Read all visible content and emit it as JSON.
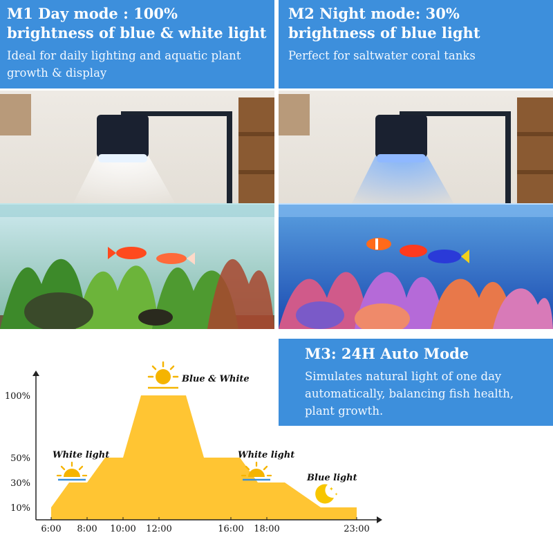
{
  "modes": {
    "m1": {
      "title": "M1 Day mode : 100% brightness of blue & white light",
      "description": "Ideal for daily lighting and aquatic plant growth & display"
    },
    "m2": {
      "title": "M2 Night mode: 30% brightness of blue light",
      "description": "Perfect for saltwater coral tanks"
    },
    "m3": {
      "title": "M3: 24H Auto Mode",
      "description": "Simulates natural light of one day automatically, balancing fish health, plant growth."
    }
  },
  "colors": {
    "panel_blue": "#3d8fdc",
    "curve_yellow": "#ffc533",
    "sun_orange": "#f5b400",
    "moon_yellow": "#f7c600"
  },
  "chart_data": {
    "type": "area",
    "x": [
      "6:00",
      "8:00",
      "10:00",
      "12:00",
      "16:00",
      "18:00",
      "23:00"
    ],
    "y_ticks": [
      "10%",
      "30%",
      "50%",
      "100%"
    ],
    "points": [
      {
        "time": "6:00",
        "level": 10
      },
      {
        "time": "7:00",
        "level": 30
      },
      {
        "time": "8:00",
        "level": 30
      },
      {
        "time": "9:00",
        "level": 50
      },
      {
        "time": "10:00",
        "level": 50
      },
      {
        "time": "11:00",
        "level": 100
      },
      {
        "time": "13:30",
        "level": 100
      },
      {
        "time": "14:30",
        "level": 50
      },
      {
        "time": "16:30",
        "level": 50
      },
      {
        "time": "17:30",
        "level": 30
      },
      {
        "time": "19:00",
        "level": 30
      },
      {
        "time": "21:00",
        "level": 10
      },
      {
        "time": "23:00",
        "level": 10
      }
    ],
    "annotations": {
      "peak": "Blue & White",
      "morning": "White light",
      "afternoon": "White light",
      "night": "Blue light"
    },
    "ylim": [
      0,
      110
    ]
  }
}
